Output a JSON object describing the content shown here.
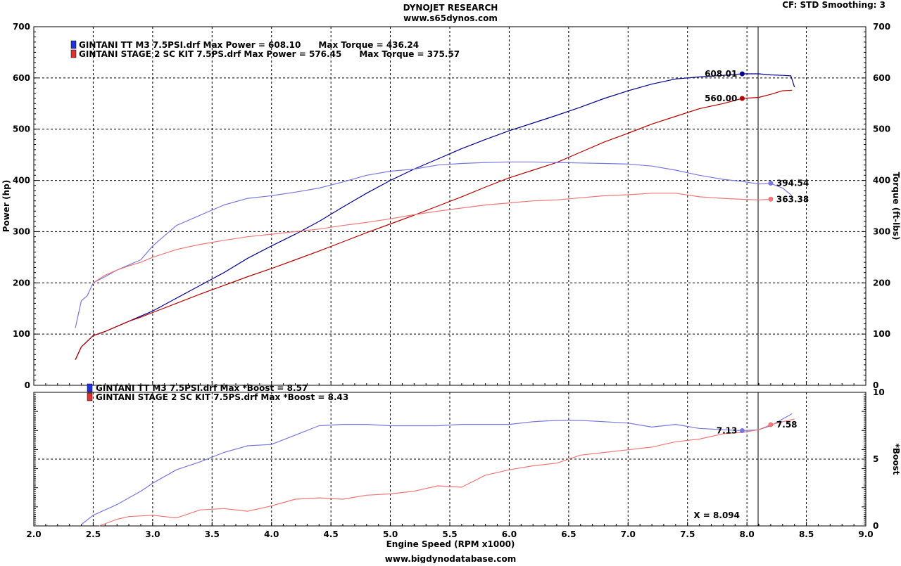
{
  "header": {
    "title": "DYNOJET RESEARCH",
    "subtitle": "www.s65dynos.com",
    "settings": "CF: STD  Smoothing: 3",
    "footer": "www.bigdynodatabase.com"
  },
  "colors": {
    "run1_dark": "#00008B",
    "run1_light": "#7777DD",
    "run2_dark": "#B40000",
    "run2_light": "#EE7777",
    "run1_swatch": "#2233DD",
    "run2_swatch": "#DD3333",
    "grid": "#000000"
  },
  "chart_data": [
    {
      "type": "line",
      "title": "",
      "xlabel": "Engine Speed (RPM x1000)",
      "ylabel": "Power (hp)",
      "y2label": "Torque (ft-lbs)",
      "xlim": [
        2.0,
        9.0
      ],
      "ylim": [
        0,
        700
      ],
      "y2lim": [
        0,
        700
      ],
      "x_ticks": [
        "2.0",
        "2.5",
        "3.0",
        "3.5",
        "4.0",
        "4.5",
        "5.0",
        "5.5",
        "6.0",
        "6.5",
        "7.0",
        "7.5",
        "8.0",
        "8.5",
        "9.0"
      ],
      "y_ticks": [
        "0",
        "100",
        "200",
        "300",
        "400",
        "500",
        "600",
        "700"
      ],
      "grid": true,
      "legend_position": "top-left",
      "legend": [
        "GINTANI TT M3 7.5PSI.drf Max Power = 608.10      Max Torque = 436.24",
        "GINTANI STAGE 2 SC KIT 7.5PS.drf Max Power = 576.45      Max Torque = 375.57"
      ],
      "cursor_x": 8.094,
      "series": [
        {
          "name": "GINTANI TT M3 7.5PSI.drf",
          "measure": "Power",
          "color_key": "run1_dark",
          "x": [
            2.35,
            2.4,
            2.5,
            2.6,
            2.7,
            2.8,
            2.9,
            3.0,
            3.2,
            3.4,
            3.6,
            3.8,
            4.0,
            4.2,
            4.4,
            4.6,
            4.8,
            5.0,
            5.2,
            5.4,
            5.6,
            5.8,
            6.0,
            6.2,
            6.4,
            6.6,
            6.8,
            7.0,
            7.2,
            7.4,
            7.6,
            7.8,
            7.96,
            8.1,
            8.2,
            8.3,
            8.37,
            8.4
          ],
          "y": [
            50,
            75,
            97,
            105,
            115,
            125,
            135,
            145,
            170,
            195,
            220,
            248,
            272,
            295,
            320,
            348,
            375,
            400,
            422,
            442,
            462,
            480,
            497,
            512,
            527,
            543,
            560,
            575,
            588,
            598,
            602,
            605,
            608,
            608,
            606,
            605,
            604,
            582
          ]
        },
        {
          "name": "GINTANI STAGE 2 SC KIT 7.5PS.drf",
          "measure": "Power",
          "color_key": "run2_dark",
          "x": [
            2.35,
            2.4,
            2.5,
            2.6,
            2.7,
            2.8,
            2.9,
            3.0,
            3.2,
            3.4,
            3.6,
            3.8,
            4.0,
            4.2,
            4.4,
            4.6,
            4.8,
            5.0,
            5.2,
            5.4,
            5.6,
            5.8,
            6.0,
            6.2,
            6.4,
            6.6,
            6.8,
            7.0,
            7.2,
            7.4,
            7.6,
            7.8,
            7.96,
            8.1,
            8.2,
            8.3,
            8.38
          ],
          "y": [
            50,
            75,
            97,
            105,
            115,
            125,
            133,
            142,
            160,
            178,
            195,
            212,
            228,
            245,
            262,
            280,
            298,
            315,
            332,
            350,
            368,
            387,
            405,
            420,
            435,
            455,
            475,
            492,
            510,
            525,
            540,
            550,
            560,
            562,
            568,
            575,
            576
          ]
        },
        {
          "name": "GINTANI TT M3 7.5PSI.drf",
          "measure": "Torque",
          "color_key": "run1_light",
          "x": [
            2.35,
            2.4,
            2.45,
            2.5,
            2.6,
            2.7,
            2.8,
            2.9,
            3.0,
            3.2,
            3.4,
            3.6,
            3.8,
            4.0,
            4.2,
            4.4,
            4.6,
            4.8,
            5.0,
            5.2,
            5.4,
            5.6,
            5.8,
            6.0,
            6.2,
            6.4,
            6.6,
            6.8,
            7.0,
            7.2,
            7.4,
            7.6,
            7.8,
            7.96,
            8.1,
            8.2,
            8.3,
            8.38
          ],
          "y": [
            112,
            165,
            175,
            200,
            212,
            225,
            235,
            245,
            272,
            312,
            332,
            352,
            365,
            370,
            377,
            385,
            397,
            410,
            418,
            422,
            430,
            433,
            435,
            436,
            436,
            435,
            434,
            433,
            432,
            428,
            420,
            410,
            402,
            398,
            393,
            394,
            385,
            370
          ]
        },
        {
          "name": "GINTANI STAGE 2 SC KIT 7.5PS.drf",
          "measure": "Torque",
          "color_key": "run2_light",
          "x": [
            2.5,
            2.6,
            2.7,
            2.8,
            2.9,
            3.0,
            3.2,
            3.4,
            3.6,
            3.8,
            4.0,
            4.2,
            4.4,
            4.6,
            4.8,
            5.0,
            5.2,
            5.4,
            5.6,
            5.8,
            6.0,
            6.2,
            6.4,
            6.6,
            6.8,
            7.0,
            7.2,
            7.4,
            7.6,
            7.8,
            7.96,
            8.1,
            8.2
          ],
          "y": [
            200,
            215,
            225,
            233,
            240,
            250,
            265,
            275,
            283,
            290,
            295,
            300,
            305,
            312,
            318,
            325,
            333,
            340,
            346,
            352,
            356,
            360,
            362,
            366,
            370,
            372,
            375,
            375,
            368,
            365,
            363,
            362,
            363
          ]
        }
      ],
      "markers": [
        {
          "x": 7.96,
          "y": 608.01,
          "label": "608.01",
          "color_key": "run1_dark"
        },
        {
          "x": 7.96,
          "y": 560.0,
          "label": "560.00",
          "color_key": "run2_dark"
        },
        {
          "x": 8.2,
          "y": 394.54,
          "label": "394.54",
          "color_key": "run1_light"
        },
        {
          "x": 8.2,
          "y": 363.38,
          "label": "363.38",
          "color_key": "run2_light"
        }
      ]
    },
    {
      "type": "line",
      "title": "",
      "xlabel": "Engine Speed (RPM x1000)",
      "ylabel": "",
      "y2label": "*Boost",
      "xlim": [
        2.0,
        9.0
      ],
      "ylim": [
        0,
        10
      ],
      "x_ticks": [
        "2.0",
        "2.5",
        "3.0",
        "3.5",
        "4.0",
        "4.5",
        "5.0",
        "5.5",
        "6.0",
        "6.5",
        "7.0",
        "7.5",
        "8.0",
        "8.5",
        "9.0"
      ],
      "y_ticks": [
        "0",
        "5",
        "10"
      ],
      "grid": true,
      "legend_position": "top-left",
      "legend": [
        "GINTANI TT M3 7.5PSI.drf Max *Boost = 8.57",
        "GINTANI STAGE 2 SC KIT 7.5PS.drf Max *Boost = 8.43"
      ],
      "cursor_x": 8.094,
      "cursor_label": "X = 8.094",
      "series": [
        {
          "name": "GINTANI TT M3 7.5PSI.drf",
          "measure": "*Boost",
          "color_key": "run1_light",
          "x": [
            2.4,
            2.5,
            2.7,
            2.9,
            3.0,
            3.2,
            3.4,
            3.6,
            3.8,
            4.0,
            4.2,
            4.4,
            4.6,
            4.8,
            5.0,
            5.2,
            5.4,
            5.6,
            5.8,
            6.0,
            6.2,
            6.4,
            6.6,
            6.8,
            7.0,
            7.2,
            7.4,
            7.6,
            7.8,
            7.96,
            8.1,
            8.2,
            8.3,
            8.38
          ],
          "y": [
            0.1,
            0.8,
            1.6,
            2.6,
            3.2,
            4.2,
            4.8,
            5.5,
            6.0,
            6.1,
            6.8,
            7.5,
            7.6,
            7.6,
            7.5,
            7.5,
            7.5,
            7.6,
            7.6,
            7.6,
            7.8,
            7.9,
            7.9,
            7.8,
            7.7,
            7.4,
            7.6,
            7.3,
            7.2,
            7.13,
            7.2,
            7.5,
            8.0,
            8.4
          ]
        },
        {
          "name": "GINTANI STAGE 2 SC KIT 7.5PS.drf",
          "measure": "*Boost",
          "color_key": "run2_light",
          "x": [
            2.55,
            2.7,
            2.8,
            3.0,
            3.2,
            3.4,
            3.6,
            3.8,
            4.0,
            4.2,
            4.4,
            4.6,
            4.8,
            5.0,
            5.2,
            5.4,
            5.6,
            5.8,
            6.0,
            6.2,
            6.4,
            6.6,
            6.8,
            7.0,
            7.2,
            7.4,
            7.6,
            7.8,
            7.96,
            8.1,
            8.2,
            8.3,
            8.4
          ],
          "y": [
            0.0,
            0.5,
            0.7,
            0.8,
            0.6,
            1.2,
            1.3,
            1.1,
            1.5,
            2.0,
            2.1,
            2.0,
            2.3,
            2.4,
            2.6,
            3.0,
            2.9,
            3.8,
            4.2,
            4.5,
            4.7,
            5.3,
            5.5,
            5.7,
            5.9,
            6.3,
            6.5,
            6.9,
            7.0,
            7.2,
            7.58,
            7.8,
            8.0
          ]
        }
      ],
      "markers": [
        {
          "x": 7.96,
          "y": 7.13,
          "label": "7.13",
          "color_key": "run1_light"
        },
        {
          "x": 8.2,
          "y": 7.58,
          "label": "7.58",
          "color_key": "run2_light"
        }
      ]
    }
  ]
}
